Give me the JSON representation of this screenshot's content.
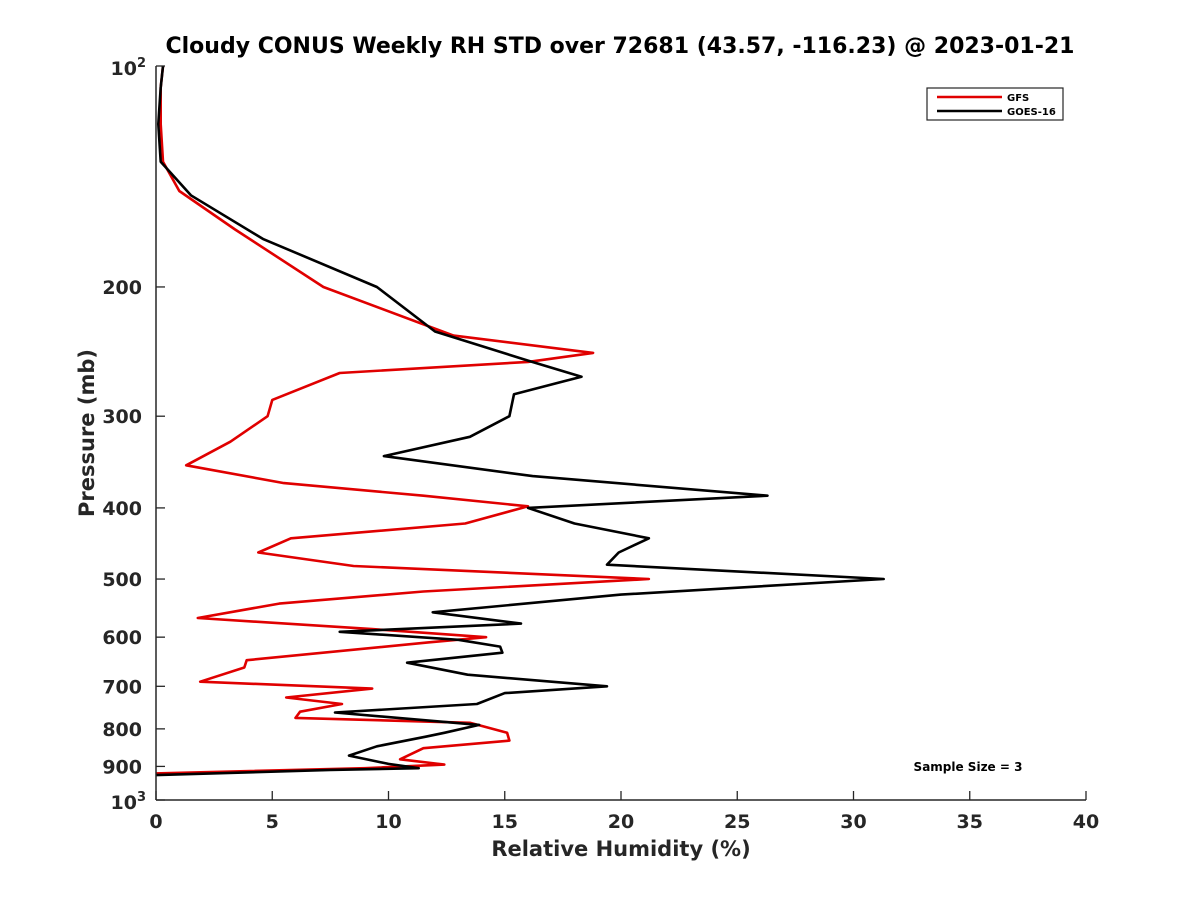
{
  "chart_data": {
    "type": "line",
    "title": "Cloudy CONUS Weekly RH STD over 72681 (43.57, -116.23) @ 2023-01-21",
    "xlabel": "Relative Humidity (%)",
    "ylabel": "Pressure (mb)",
    "xlim": [
      0,
      40
    ],
    "ylim": [
      100,
      1000
    ],
    "yscale": "log",
    "y_reversed": true,
    "xticks": [
      0,
      5,
      10,
      15,
      20,
      25,
      30,
      35,
      40
    ],
    "yticks": [
      200,
      300,
      400,
      500,
      600,
      700,
      800,
      900
    ],
    "ytick_edge_labels": {
      "base": "10",
      "top_exp": "2",
      "bottom_exp": "3"
    },
    "grid": false,
    "legend_position": "top-right",
    "annotation": "Sample Size = 3",
    "series": [
      {
        "name": "GFS",
        "color": "#e00000",
        "x": [
          0.3,
          0.2,
          0.2,
          0.3,
          1.0,
          3.4,
          7.2,
          12.8,
          18.8,
          16.0,
          7.9,
          5.0,
          4.8,
          3.2,
          1.3,
          5.5,
          11.5,
          16.0,
          13.3,
          5.8,
          4.4,
          8.5,
          21.2,
          11.5,
          5.3,
          1.8,
          9.3,
          14.2,
          11.7,
          3.9,
          3.8,
          1.9,
          9.3,
          5.6,
          8.0,
          6.2,
          6.0,
          13.5,
          15.1,
          15.2,
          11.5,
          10.5,
          12.4,
          9.0,
          0.0
        ],
        "y": [
          100,
          107,
          120,
          135,
          148,
          167,
          200,
          233,
          246,
          253,
          262,
          285,
          300,
          325,
          350,
          370,
          385,
          398,
          420,
          440,
          460,
          480,
          500,
          520,
          540,
          565,
          585,
          600,
          610,
          645,
          660,
          690,
          705,
          725,
          740,
          758,
          773,
          785,
          810,
          830,
          850,
          880,
          895,
          905,
          920
        ]
      },
      {
        "name": "GOES-16",
        "color": "#000000",
        "x": [
          0.3,
          0.2,
          0.1,
          0.2,
          1.5,
          4.6,
          9.5,
          12.0,
          16.0,
          18.3,
          15.4,
          15.2,
          13.5,
          9.8,
          16.2,
          26.3,
          16.0,
          18.0,
          21.2,
          19.9,
          19.4,
          31.3,
          20.0,
          11.9,
          15.7,
          7.9,
          13.0,
          14.8,
          14.9,
          10.8,
          13.4,
          19.4,
          15.0,
          13.8,
          7.7,
          13.9,
          12.4,
          11.6,
          9.5,
          8.3,
          10.0,
          11.3,
          7.5,
          0.0
        ],
        "y": [
          100,
          107,
          120,
          135,
          150,
          172,
          200,
          230,
          252,
          265,
          280,
          300,
          320,
          340,
          362,
          385,
          400,
          420,
          440,
          460,
          478,
          500,
          525,
          555,
          575,
          590,
          605,
          618,
          630,
          650,
          675,
          700,
          715,
          740,
          760,
          790,
          810,
          820,
          845,
          870,
          893,
          905,
          910,
          925
        ]
      }
    ]
  }
}
